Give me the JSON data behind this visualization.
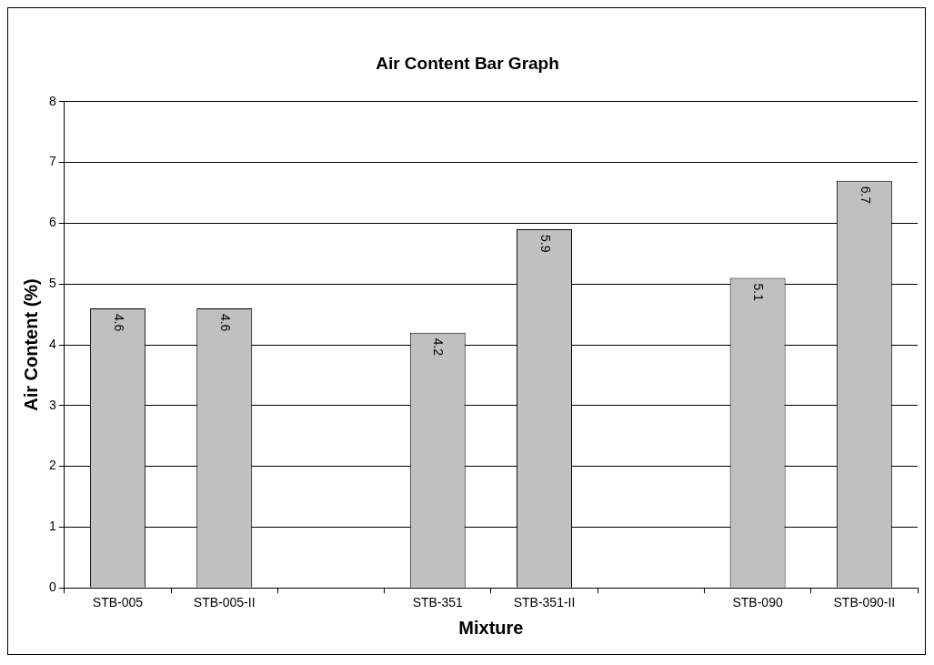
{
  "chart_data": {
    "type": "bar",
    "title": "Air Content Bar Graph",
    "xlabel": "Mixture",
    "ylabel": "Air Content (%)",
    "categories": [
      "STB-005",
      "STB-005-II",
      null,
      "STB-351",
      "STB-351-II",
      null,
      "STB-090",
      "STB-090-II"
    ],
    "values": [
      4.6,
      4.6,
      null,
      4.2,
      5.9,
      null,
      5.1,
      6.7
    ],
    "color": "#c0c0c0",
    "ylim": [
      0,
      8
    ],
    "yticks": [
      0,
      1,
      2,
      3,
      4,
      5,
      6,
      7,
      8
    ],
    "grid": "y",
    "data_labels": true,
    "legend": false
  }
}
